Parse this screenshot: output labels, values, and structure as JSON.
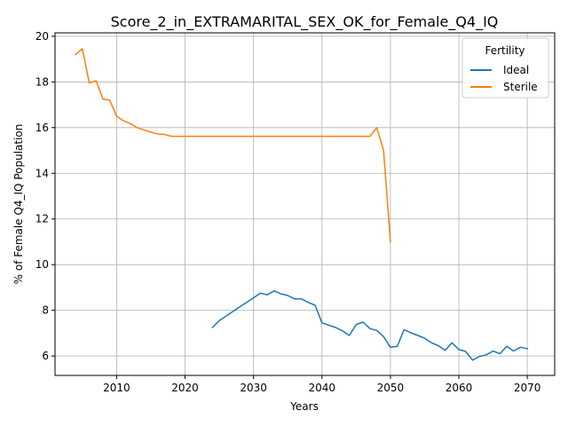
{
  "chart_data": {
    "type": "line",
    "title": "Score_2_in_EXTRAMARITAL_SEX_OK_for_Female_Q4_IQ",
    "xlabel": "Years",
    "ylabel": "% of Female Q4_IQ Population",
    "xlim": [
      2001,
      2074
    ],
    "ylim": [
      5.15,
      20.15
    ],
    "x_ticks": [
      2010,
      2020,
      2030,
      2040,
      2050,
      2060,
      2070
    ],
    "y_ticks": [
      6,
      8,
      10,
      12,
      14,
      16,
      18,
      20
    ],
    "grid": true,
    "legend": {
      "title": "Fertility",
      "position": "upper right"
    },
    "series": [
      {
        "name": "Ideal",
        "color": "#1f77b4",
        "x": [
          2024,
          2025,
          2026,
          2027,
          2028,
          2029,
          2030,
          2031,
          2032,
          2033,
          2034,
          2035,
          2036,
          2037,
          2038,
          2039,
          2040,
          2041,
          2042,
          2043,
          2044,
          2045,
          2046,
          2047,
          2048,
          2049,
          2050,
          2051,
          2052,
          2053,
          2054,
          2055,
          2056,
          2057,
          2058,
          2059,
          2060,
          2061,
          2062,
          2063,
          2064,
          2065,
          2066,
          2067,
          2068,
          2069,
          2070
        ],
        "y": [
          7.25,
          7.55,
          7.75,
          7.95,
          8.15,
          8.35,
          8.55,
          8.75,
          8.68,
          8.85,
          8.72,
          8.65,
          8.5,
          8.5,
          8.35,
          8.22,
          7.45,
          7.35,
          7.25,
          7.1,
          6.9,
          7.38,
          7.48,
          7.2,
          7.12,
          6.85,
          6.38,
          6.42,
          7.15,
          7.02,
          6.9,
          6.78,
          6.58,
          6.45,
          6.25,
          6.58,
          6.28,
          6.2,
          5.82,
          5.98,
          6.05,
          6.22,
          6.1,
          6.42,
          6.22,
          6.38,
          6.32
        ]
      },
      {
        "name": "Sterile",
        "color": "#ff7f0e",
        "x": [
          2004,
          2005,
          2006,
          2007,
          2008,
          2009,
          2010,
          2011,
          2012,
          2013,
          2014,
          2015,
          2016,
          2017,
          2018,
          2020,
          2025,
          2030,
          2035,
          2040,
          2045,
          2047,
          2048,
          2049,
          2050
        ],
        "y": [
          19.2,
          19.45,
          17.95,
          18.05,
          17.25,
          17.2,
          16.5,
          16.3,
          16.18,
          16.0,
          15.9,
          15.8,
          15.72,
          15.7,
          15.62,
          15.62,
          15.62,
          15.62,
          15.62,
          15.62,
          15.62,
          15.62,
          16.0,
          15.0,
          11.0
        ]
      }
    ]
  }
}
